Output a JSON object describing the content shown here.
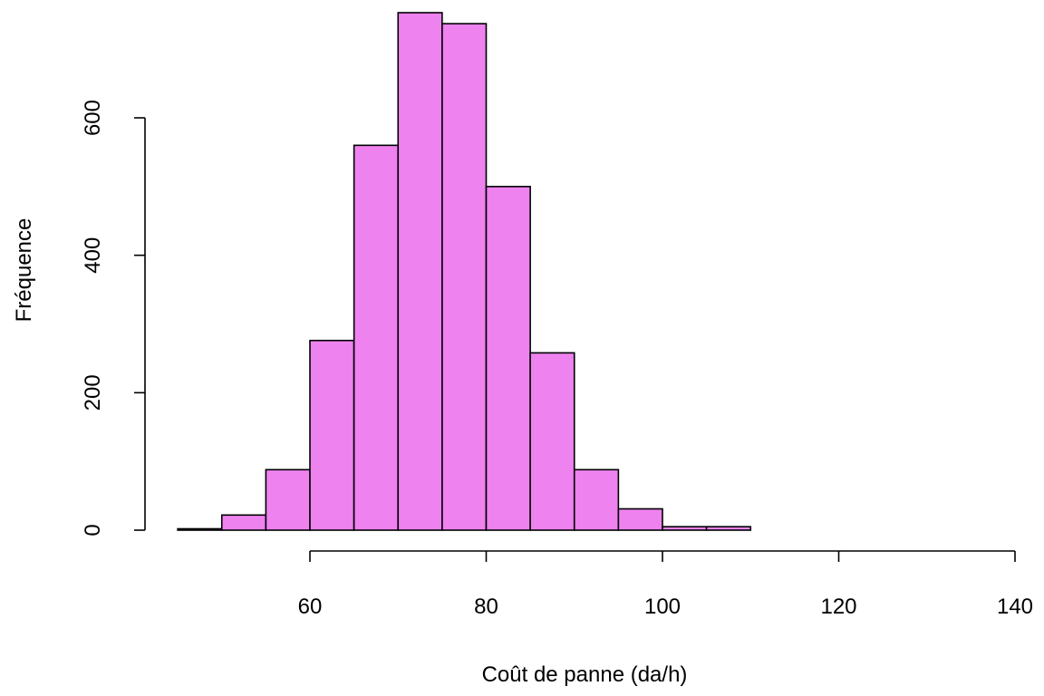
{
  "chart_data": {
    "type": "bar",
    "title": "",
    "xlabel": "Coût de panne (da/h)",
    "ylabel": "Fréquence",
    "bar_color": "#ee82ee",
    "bar_border_color": "#000000",
    "bin_width": 5,
    "bins": [
      {
        "x0": 45,
        "x1": 50,
        "count": 2
      },
      {
        "x0": 50,
        "x1": 55,
        "count": 22
      },
      {
        "x0": 55,
        "x1": 60,
        "count": 88
      },
      {
        "x0": 60,
        "x1": 65,
        "count": 276
      },
      {
        "x0": 65,
        "x1": 70,
        "count": 560
      },
      {
        "x0": 70,
        "x1": 75,
        "count": 753
      },
      {
        "x0": 75,
        "x1": 80,
        "count": 737
      },
      {
        "x0": 80,
        "x1": 85,
        "count": 500
      },
      {
        "x0": 85,
        "x1": 90,
        "count": 258
      },
      {
        "x0": 90,
        "x1": 95,
        "count": 88
      },
      {
        "x0": 95,
        "x1": 100,
        "count": 31
      },
      {
        "x0": 100,
        "x1": 105,
        "count": 5
      },
      {
        "x0": 105,
        "x1": 110,
        "count": 5
      },
      {
        "x0": 110,
        "x1": 115,
        "count": 0
      },
      {
        "x0": 115,
        "x1": 120,
        "count": 0
      },
      {
        "x0": 120,
        "x1": 125,
        "count": 0
      },
      {
        "x0": 125,
        "x1": 130,
        "count": 0
      },
      {
        "x0": 130,
        "x1": 135,
        "count": 0
      },
      {
        "x0": 135,
        "x1": 140,
        "count": 0
      }
    ],
    "x_ticks": [
      60,
      80,
      100,
      120,
      140
    ],
    "y_ticks": [
      0,
      200,
      400,
      600
    ],
    "xlim": [
      45,
      140
    ],
    "ylim": [
      0,
      753
    ],
    "grid": false,
    "legend": "none"
  }
}
